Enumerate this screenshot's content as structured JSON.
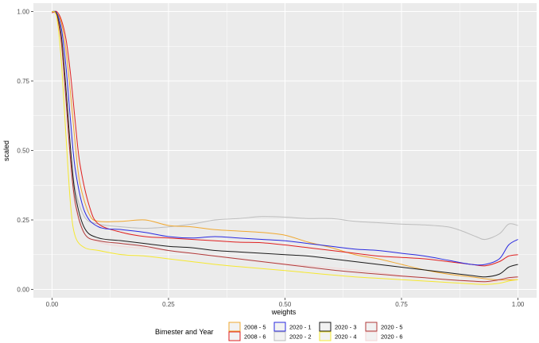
{
  "chart_data": {
    "type": "line",
    "xlabel": "weights",
    "ylabel": "scaled",
    "xlim": [
      -0.04,
      1.04
    ],
    "ylim": [
      -0.03,
      1.03
    ],
    "x_ticks": [
      0,
      0.25,
      0.5,
      0.75,
      1
    ],
    "x_tick_labels": [
      "0.00",
      "0.25",
      "0.50",
      "0.75",
      "1.00"
    ],
    "y_ticks": [
      0,
      0.25,
      0.5,
      0.75,
      1
    ],
    "y_tick_labels": [
      "0.00",
      "0.25",
      "0.50",
      "0.75",
      "1.00"
    ],
    "grid": true,
    "legend": {
      "title": "Bimester and Year",
      "position": "bottom",
      "columns": [
        [
          "2008 - 5",
          "2008 - 6"
        ],
        [
          "2020 - 1",
          "2020 - 2"
        ],
        [
          "2020 - 3",
          "2020 - 4"
        ],
        [
          "2020 - 5",
          "2020 - 6"
        ]
      ]
    },
    "series": [
      {
        "name": "2020 - 6",
        "color": "#f5d5d5",
        "points": [
          [
            0,
            1
          ],
          [
            0.01,
            0.98
          ],
          [
            0.02,
            0.88
          ],
          [
            0.03,
            0.68
          ],
          [
            0.04,
            0.45
          ],
          [
            0.05,
            0.3
          ],
          [
            0.07,
            0.2
          ],
          [
            0.1,
            0.17
          ],
          [
            0.15,
            0.155
          ],
          [
            0.25,
            0.14
          ],
          [
            0.35,
            0.12
          ],
          [
            0.45,
            0.1
          ],
          [
            0.55,
            0.085
          ],
          [
            0.65,
            0.07
          ],
          [
            0.75,
            0.05
          ],
          [
            0.85,
            0.035
          ],
          [
            0.92,
            0.025
          ],
          [
            0.96,
            0.03
          ],
          [
            1,
            0.045
          ]
        ]
      },
      {
        "name": "2020 - 2",
        "color": "#bdbdbd",
        "points": [
          [
            0,
            1
          ],
          [
            0.01,
            0.99
          ],
          [
            0.02,
            0.9
          ],
          [
            0.03,
            0.7
          ],
          [
            0.04,
            0.5
          ],
          [
            0.05,
            0.36
          ],
          [
            0.07,
            0.26
          ],
          [
            0.1,
            0.235
          ],
          [
            0.15,
            0.225
          ],
          [
            0.2,
            0.22
          ],
          [
            0.25,
            0.225
          ],
          [
            0.3,
            0.235
          ],
          [
            0.35,
            0.25
          ],
          [
            0.4,
            0.255
          ],
          [
            0.45,
            0.262
          ],
          [
            0.5,
            0.26
          ],
          [
            0.55,
            0.255
          ],
          [
            0.6,
            0.255
          ],
          [
            0.65,
            0.245
          ],
          [
            0.7,
            0.24
          ],
          [
            0.75,
            0.235
          ],
          [
            0.8,
            0.232
          ],
          [
            0.85,
            0.225
          ],
          [
            0.88,
            0.21
          ],
          [
            0.91,
            0.19
          ],
          [
            0.93,
            0.18
          ],
          [
            0.96,
            0.2
          ],
          [
            0.98,
            0.235
          ],
          [
            1,
            0.23
          ]
        ]
      },
      {
        "name": "2008 - 5",
        "color": "#f0a830",
        "points": [
          [
            0,
            1
          ],
          [
            0.01,
            0.995
          ],
          [
            0.02,
            0.96
          ],
          [
            0.03,
            0.86
          ],
          [
            0.04,
            0.7
          ],
          [
            0.05,
            0.52
          ],
          [
            0.06,
            0.38
          ],
          [
            0.08,
            0.27
          ],
          [
            0.1,
            0.245
          ],
          [
            0.15,
            0.245
          ],
          [
            0.2,
            0.25
          ],
          [
            0.25,
            0.23
          ],
          [
            0.3,
            0.225
          ],
          [
            0.35,
            0.215
          ],
          [
            0.4,
            0.21
          ],
          [
            0.45,
            0.205
          ],
          [
            0.5,
            0.195
          ],
          [
            0.55,
            0.17
          ],
          [
            0.6,
            0.15
          ],
          [
            0.65,
            0.125
          ],
          [
            0.7,
            0.11
          ],
          [
            0.75,
            0.09
          ],
          [
            0.8,
            0.07
          ],
          [
            0.85,
            0.055
          ],
          [
            0.9,
            0.045
          ],
          [
            0.95,
            0.035
          ],
          [
            1,
            0.035
          ]
        ]
      },
      {
        "name": "2008 - 6",
        "color": "#e02020",
        "points": [
          [
            0,
            0.995
          ],
          [
            0.01,
            1
          ],
          [
            0.02,
            0.97
          ],
          [
            0.03,
            0.9
          ],
          [
            0.04,
            0.77
          ],
          [
            0.05,
            0.6
          ],
          [
            0.06,
            0.45
          ],
          [
            0.08,
            0.3
          ],
          [
            0.1,
            0.235
          ],
          [
            0.15,
            0.205
          ],
          [
            0.2,
            0.19
          ],
          [
            0.25,
            0.185
          ],
          [
            0.3,
            0.18
          ],
          [
            0.35,
            0.175
          ],
          [
            0.4,
            0.17
          ],
          [
            0.45,
            0.168
          ],
          [
            0.5,
            0.16
          ],
          [
            0.55,
            0.15
          ],
          [
            0.6,
            0.14
          ],
          [
            0.65,
            0.13
          ],
          [
            0.7,
            0.12
          ],
          [
            0.75,
            0.115
          ],
          [
            0.8,
            0.11
          ],
          [
            0.85,
            0.1
          ],
          [
            0.9,
            0.09
          ],
          [
            0.93,
            0.085
          ],
          [
            0.96,
            0.1
          ],
          [
            0.98,
            0.12
          ],
          [
            1,
            0.125
          ]
        ]
      },
      {
        "name": "2020 - 1",
        "color": "#2a2ae0",
        "points": [
          [
            0,
            1
          ],
          [
            0.01,
            0.995
          ],
          [
            0.02,
            0.94
          ],
          [
            0.03,
            0.8
          ],
          [
            0.04,
            0.6
          ],
          [
            0.05,
            0.43
          ],
          [
            0.07,
            0.28
          ],
          [
            0.1,
            0.225
          ],
          [
            0.15,
            0.215
          ],
          [
            0.2,
            0.205
          ],
          [
            0.25,
            0.19
          ],
          [
            0.3,
            0.185
          ],
          [
            0.35,
            0.19
          ],
          [
            0.4,
            0.185
          ],
          [
            0.45,
            0.18
          ],
          [
            0.5,
            0.175
          ],
          [
            0.55,
            0.165
          ],
          [
            0.6,
            0.155
          ],
          [
            0.65,
            0.145
          ],
          [
            0.7,
            0.14
          ],
          [
            0.75,
            0.13
          ],
          [
            0.8,
            0.12
          ],
          [
            0.85,
            0.105
          ],
          [
            0.9,
            0.09
          ],
          [
            0.93,
            0.09
          ],
          [
            0.96,
            0.11
          ],
          [
            0.98,
            0.16
          ],
          [
            1,
            0.18
          ]
        ]
      },
      {
        "name": "2020 - 3",
        "color": "#1a1a1a",
        "points": [
          [
            0,
            1
          ],
          [
            0.01,
            0.99
          ],
          [
            0.02,
            0.91
          ],
          [
            0.03,
            0.72
          ],
          [
            0.04,
            0.5
          ],
          [
            0.05,
            0.34
          ],
          [
            0.07,
            0.22
          ],
          [
            0.1,
            0.185
          ],
          [
            0.15,
            0.175
          ],
          [
            0.2,
            0.165
          ],
          [
            0.25,
            0.155
          ],
          [
            0.3,
            0.15
          ],
          [
            0.35,
            0.14
          ],
          [
            0.4,
            0.135
          ],
          [
            0.45,
            0.13
          ],
          [
            0.5,
            0.125
          ],
          [
            0.55,
            0.12
          ],
          [
            0.6,
            0.11
          ],
          [
            0.65,
            0.1
          ],
          [
            0.7,
            0.09
          ],
          [
            0.75,
            0.08
          ],
          [
            0.8,
            0.07
          ],
          [
            0.85,
            0.06
          ],
          [
            0.9,
            0.05
          ],
          [
            0.93,
            0.045
          ],
          [
            0.96,
            0.055
          ],
          [
            0.98,
            0.08
          ],
          [
            1,
            0.09
          ]
        ]
      },
      {
        "name": "2020 - 5",
        "color": "#b03a3a",
        "points": [
          [
            0,
            1
          ],
          [
            0.01,
            0.985
          ],
          [
            0.02,
            0.89
          ],
          [
            0.03,
            0.68
          ],
          [
            0.04,
            0.46
          ],
          [
            0.05,
            0.31
          ],
          [
            0.07,
            0.2
          ],
          [
            0.1,
            0.175
          ],
          [
            0.15,
            0.165
          ],
          [
            0.2,
            0.155
          ],
          [
            0.25,
            0.14
          ],
          [
            0.3,
            0.13
          ],
          [
            0.35,
            0.12
          ],
          [
            0.4,
            0.11
          ],
          [
            0.45,
            0.1
          ],
          [
            0.5,
            0.09
          ],
          [
            0.55,
            0.08
          ],
          [
            0.6,
            0.07
          ],
          [
            0.65,
            0.062
          ],
          [
            0.7,
            0.055
          ],
          [
            0.75,
            0.048
          ],
          [
            0.8,
            0.042
          ],
          [
            0.85,
            0.035
          ],
          [
            0.9,
            0.03
          ],
          [
            0.93,
            0.028
          ],
          [
            0.96,
            0.035
          ],
          [
            0.98,
            0.042
          ],
          [
            1,
            0.045
          ]
        ]
      },
      {
        "name": "2020 - 4",
        "color": "#f5e830",
        "points": [
          [
            0,
            1
          ],
          [
            0.01,
            0.98
          ],
          [
            0.02,
            0.82
          ],
          [
            0.03,
            0.55
          ],
          [
            0.04,
            0.3
          ],
          [
            0.05,
            0.19
          ],
          [
            0.07,
            0.15
          ],
          [
            0.1,
            0.14
          ],
          [
            0.15,
            0.125
          ],
          [
            0.2,
            0.12
          ],
          [
            0.25,
            0.11
          ],
          [
            0.3,
            0.1
          ],
          [
            0.35,
            0.09
          ],
          [
            0.4,
            0.082
          ],
          [
            0.45,
            0.075
          ],
          [
            0.5,
            0.068
          ],
          [
            0.55,
            0.06
          ],
          [
            0.6,
            0.052
          ],
          [
            0.65,
            0.045
          ],
          [
            0.7,
            0.04
          ],
          [
            0.75,
            0.035
          ],
          [
            0.8,
            0.03
          ],
          [
            0.85,
            0.025
          ],
          [
            0.9,
            0.02
          ],
          [
            0.93,
            0.018
          ],
          [
            0.96,
            0.022
          ],
          [
            0.98,
            0.03
          ],
          [
            1,
            0.035
          ]
        ]
      }
    ]
  }
}
